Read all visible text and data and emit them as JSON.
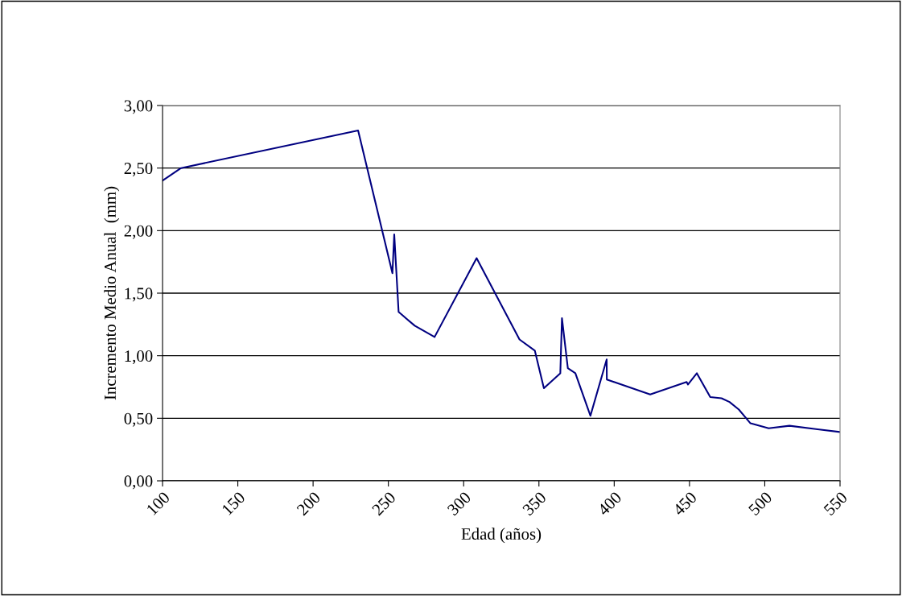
{
  "chart_data": {
    "type": "line",
    "xlabel": "Edad (años)",
    "ylabel": "Incremento Medio Anual  (mm)",
    "x": [
      100,
      112.3,
      229.9,
      252.7,
      253.9,
      256.8,
      267.5,
      280.7,
      308.6,
      337.1,
      347.3,
      353.3,
      364.2,
      365.3,
      369.2,
      374.2,
      384.2,
      395,
      395.1,
      423.9,
      448.1,
      449,
      454.9,
      463.8,
      471.3,
      476.6,
      482.8,
      490.5,
      502.6,
      516.4,
      550
    ],
    "series": [
      {
        "color": "#000080",
        "values": [
          2.4,
          2.5,
          2.8,
          1.66,
          1.97,
          1.35,
          1.24,
          1.15,
          1.78,
          1.13,
          1.04,
          0.74,
          0.86,
          1.3,
          0.9,
          0.86,
          0.52,
          0.97,
          0.81,
          0.69,
          0.79,
          0.77,
          0.86,
          0.67,
          0.66,
          0.63,
          0.57,
          0.46,
          0.42,
          0.44,
          0.39
        ]
      }
    ],
    "xlim": [
      100,
      550
    ],
    "xticks": [
      100,
      150,
      200,
      250,
      300,
      350,
      400,
      450,
      500,
      550
    ],
    "ylim": [
      0,
      3
    ],
    "yticks": [
      {
        "value": 0,
        "label": "0,00"
      },
      {
        "value": 0.5,
        "label": "0,50"
      },
      {
        "value": 1,
        "label": "1,00"
      },
      {
        "value": 1.5,
        "label": "1,50"
      },
      {
        "value": 2,
        "label": "2,00"
      },
      {
        "value": 2.5,
        "label": "2,50"
      },
      {
        "value": 3,
        "label": "3,00"
      }
    ],
    "grid": "y",
    "marker": "none",
    "line_style": "solid"
  }
}
